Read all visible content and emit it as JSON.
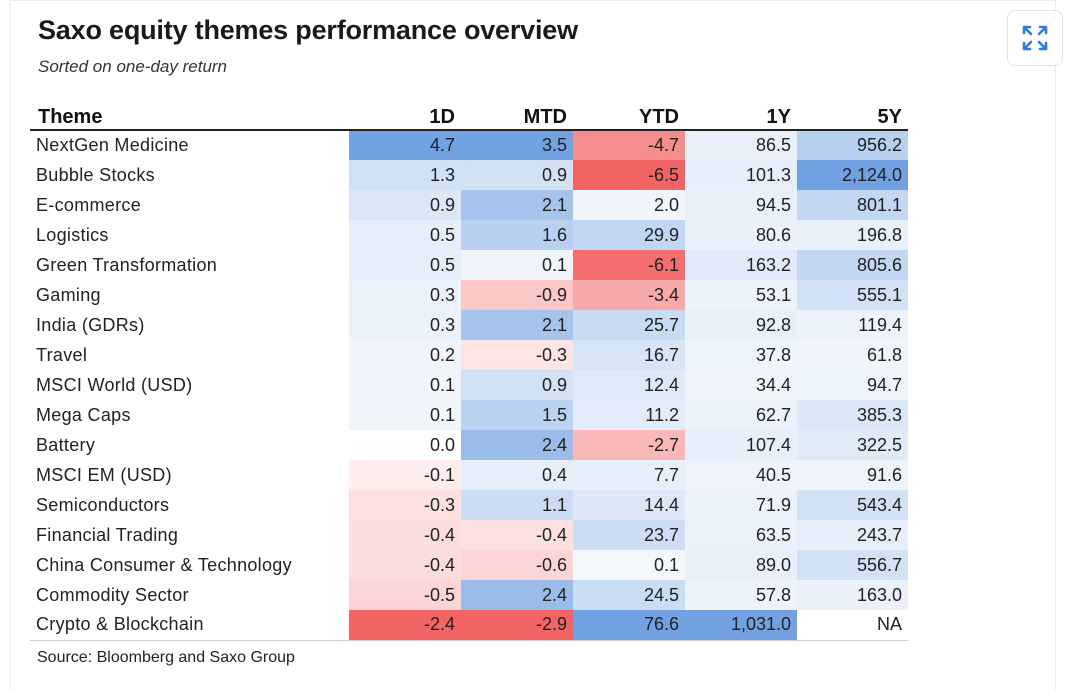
{
  "title": "Saxo equity themes performance overview",
  "subtitle": "Sorted on one-day return",
  "source": "Source: Bloomberg and Saxo Group",
  "expand_icon": "expand-arrows-icon",
  "colors": {
    "positive": "#4a86d8",
    "negative": "#f03a3a"
  },
  "chart_data": {
    "type": "table",
    "columns": [
      "Theme",
      "1D",
      "MTD",
      "YTD",
      "1Y",
      "5Y"
    ],
    "rows": [
      {
        "theme": "NextGen Medicine",
        "values": [
          "4.7",
          "3.5",
          "-4.7",
          "86.5",
          "956.2"
        ]
      },
      {
        "theme": "Bubble Stocks",
        "values": [
          "1.3",
          "0.9",
          "-6.5",
          "101.3",
          "2,124.0"
        ]
      },
      {
        "theme": "E-commerce",
        "values": [
          "0.9",
          "2.1",
          "2.0",
          "94.5",
          "801.1"
        ]
      },
      {
        "theme": "Logistics",
        "values": [
          "0.5",
          "1.6",
          "29.9",
          "80.6",
          "196.8"
        ]
      },
      {
        "theme": "Green Transformation",
        "values": [
          "0.5",
          "0.1",
          "-6.1",
          "163.2",
          "805.6"
        ]
      },
      {
        "theme": "Gaming",
        "values": [
          "0.3",
          "-0.9",
          "-3.4",
          "53.1",
          "555.1"
        ]
      },
      {
        "theme": "India (GDRs)",
        "values": [
          "0.3",
          "2.1",
          "25.7",
          "92.8",
          "119.4"
        ]
      },
      {
        "theme": "Travel",
        "values": [
          "0.2",
          "-0.3",
          "16.7",
          "37.8",
          "61.8"
        ]
      },
      {
        "theme": "MSCI World (USD)",
        "values": [
          "0.1",
          "0.9",
          "12.4",
          "34.4",
          "94.7"
        ]
      },
      {
        "theme": "Mega Caps",
        "values": [
          "0.1",
          "1.5",
          "11.2",
          "62.7",
          "385.3"
        ]
      },
      {
        "theme": "Battery",
        "values": [
          "0.0",
          "2.4",
          "-2.7",
          "107.4",
          "322.5"
        ]
      },
      {
        "theme": "MSCI EM (USD)",
        "values": [
          "-0.1",
          "0.4",
          "7.7",
          "40.5",
          "91.6"
        ]
      },
      {
        "theme": "Semiconductors",
        "values": [
          "-0.3",
          "1.1",
          "14.4",
          "71.9",
          "543.4"
        ]
      },
      {
        "theme": "Financial Trading",
        "values": [
          "-0.4",
          "-0.4",
          "23.7",
          "63.5",
          "243.7"
        ]
      },
      {
        "theme": "China Consumer & Technology",
        "values": [
          "-0.4",
          "-0.6",
          "0.1",
          "89.0",
          "556.7"
        ]
      },
      {
        "theme": "Commodity Sector",
        "values": [
          "-0.5",
          "2.4",
          "24.5",
          "57.8",
          "163.0"
        ]
      },
      {
        "theme": "Crypto & Blockchain",
        "values": [
          "-2.4",
          "-2.9",
          "76.6",
          "1,031.0",
          "NA"
        ]
      }
    ]
  }
}
